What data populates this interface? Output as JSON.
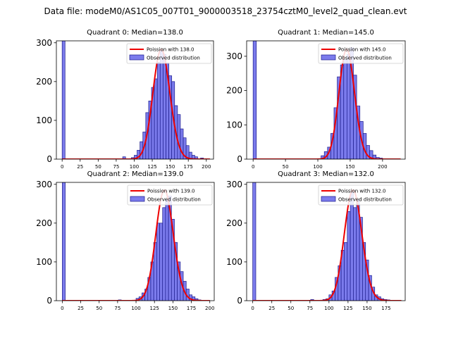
{
  "figure": {
    "suptitle": "Data file: modeM0/AS1C05_007T01_9000003518_23754cztM0_level2_quad_clean.evt"
  },
  "colors": {
    "bar_fill": "#7b7bec",
    "bar_edge": "#1c1c8c",
    "poisson_line": "#ee0000",
    "axes": "#000000"
  },
  "chart_data": [
    {
      "type": "bar",
      "title": "Quadrant 0: Median=138.0",
      "legend": [
        "Poission with 138.0",
        "Observed distribution"
      ],
      "legend_placement": "top-right",
      "median": 138,
      "xlim": [
        -8,
        210
      ],
      "ylim": [
        0,
        305
      ],
      "xticks": [
        0,
        25,
        50,
        75,
        100,
        125,
        150,
        175,
        200
      ],
      "yticks": [
        0,
        100,
        200,
        300
      ],
      "bin_width": 4,
      "bins": [
        {
          "x": 0,
          "count": 305
        },
        {
          "x": 84,
          "count": 6
        },
        {
          "x": 96,
          "count": 4
        },
        {
          "x": 100,
          "count": 10
        },
        {
          "x": 104,
          "count": 23
        },
        {
          "x": 108,
          "count": 45
        },
        {
          "x": 112,
          "count": 70
        },
        {
          "x": 116,
          "count": 120
        },
        {
          "x": 120,
          "count": 150
        },
        {
          "x": 124,
          "count": 185
        },
        {
          "x": 128,
          "count": 207
        },
        {
          "x": 132,
          "count": 250
        },
        {
          "x": 136,
          "count": 283
        },
        {
          "x": 140,
          "count": 270
        },
        {
          "x": 144,
          "count": 248
        },
        {
          "x": 148,
          "count": 215
        },
        {
          "x": 152,
          "count": 200
        },
        {
          "x": 156,
          "count": 138
        },
        {
          "x": 160,
          "count": 115
        },
        {
          "x": 164,
          "count": 78
        },
        {
          "x": 168,
          "count": 55
        },
        {
          "x": 172,
          "count": 35
        },
        {
          "x": 176,
          "count": 18
        },
        {
          "x": 180,
          "count": 10
        },
        {
          "x": 184,
          "count": 6
        },
        {
          "x": 192,
          "count": 3
        }
      ],
      "poisson_peak": 283,
      "poisson_x_range": [
        0,
        205
      ]
    },
    {
      "type": "bar",
      "title": "Quadrant 1: Median=145.0",
      "legend": [
        "Poission with 145.0",
        "Observed distribution"
      ],
      "legend_placement": "top-right",
      "median": 145,
      "xlim": [
        -10,
        235
      ],
      "ylim": [
        0,
        345
      ],
      "xticks": [
        0,
        50,
        100,
        150,
        200
      ],
      "yticks": [
        0,
        100,
        200,
        300
      ],
      "bin_width": 5,
      "bins": [
        {
          "x": 0,
          "count": 345
        },
        {
          "x": 105,
          "count": 10
        },
        {
          "x": 110,
          "count": 22
        },
        {
          "x": 115,
          "count": 35
        },
        {
          "x": 120,
          "count": 75
        },
        {
          "x": 125,
          "count": 150
        },
        {
          "x": 130,
          "count": 240
        },
        {
          "x": 135,
          "count": 275
        },
        {
          "x": 140,
          "count": 290
        },
        {
          "x": 145,
          "count": 305
        },
        {
          "x": 150,
          "count": 325
        },
        {
          "x": 155,
          "count": 245
        },
        {
          "x": 160,
          "count": 155
        },
        {
          "x": 165,
          "count": 110
        },
        {
          "x": 170,
          "count": 75
        },
        {
          "x": 175,
          "count": 40
        },
        {
          "x": 180,
          "count": 25
        },
        {
          "x": 185,
          "count": 12
        },
        {
          "x": 190,
          "count": 5
        },
        {
          "x": 195,
          "count": 3
        }
      ],
      "poisson_peak": 320,
      "poisson_x_range": [
        0,
        228
      ]
    },
    {
      "type": "bar",
      "title": "Quadrant 2: Median=139.0",
      "legend": [
        "Poission with 139.0",
        "Observed distribution"
      ],
      "legend_placement": "top-right",
      "median": 139,
      "xlim": [
        -8,
        206
      ],
      "ylim": [
        0,
        305
      ],
      "xticks": [
        0,
        25,
        50,
        75,
        100,
        125,
        150,
        175,
        200
      ],
      "yticks": [
        0,
        100,
        200,
        300
      ],
      "bin_width": 4,
      "bins": [
        {
          "x": 0,
          "count": 305
        },
        {
          "x": 76,
          "count": 2
        },
        {
          "x": 100,
          "count": 6
        },
        {
          "x": 104,
          "count": 10
        },
        {
          "x": 108,
          "count": 20
        },
        {
          "x": 112,
          "count": 30
        },
        {
          "x": 116,
          "count": 60
        },
        {
          "x": 120,
          "count": 100
        },
        {
          "x": 124,
          "count": 150
        },
        {
          "x": 128,
          "count": 200
        },
        {
          "x": 132,
          "count": 200
        },
        {
          "x": 136,
          "count": 240
        },
        {
          "x": 140,
          "count": 260
        },
        {
          "x": 144,
          "count": 270
        },
        {
          "x": 148,
          "count": 210
        },
        {
          "x": 152,
          "count": 150
        },
        {
          "x": 156,
          "count": 100
        },
        {
          "x": 160,
          "count": 75
        },
        {
          "x": 164,
          "count": 50
        },
        {
          "x": 168,
          "count": 30
        },
        {
          "x": 172,
          "count": 15
        },
        {
          "x": 176,
          "count": 10
        },
        {
          "x": 180,
          "count": 5
        },
        {
          "x": 184,
          "count": 2
        }
      ],
      "poisson_peak": 285,
      "poisson_x_range": [
        0,
        200
      ]
    },
    {
      "type": "bar",
      "title": "Quadrant 3: Median=132.0",
      "legend": [
        "Poission with 132.0",
        "Observed distribution"
      ],
      "legend_placement": "top-right",
      "median": 132,
      "xlim": [
        -8,
        200
      ],
      "ylim": [
        0,
        305
      ],
      "xticks": [
        0,
        25,
        50,
        75,
        100,
        125,
        150,
        175
      ],
      "yticks": [
        0,
        100,
        200,
        300
      ],
      "bin_width": 4,
      "bins": [
        {
          "x": 0,
          "count": 305
        },
        {
          "x": 76,
          "count": 3
        },
        {
          "x": 92,
          "count": 3
        },
        {
          "x": 96,
          "count": 5
        },
        {
          "x": 100,
          "count": 15
        },
        {
          "x": 104,
          "count": 25
        },
        {
          "x": 108,
          "count": 60
        },
        {
          "x": 112,
          "count": 90
        },
        {
          "x": 116,
          "count": 130
        },
        {
          "x": 120,
          "count": 150
        },
        {
          "x": 124,
          "count": 230
        },
        {
          "x": 128,
          "count": 280
        },
        {
          "x": 132,
          "count": 240
        },
        {
          "x": 136,
          "count": 260
        },
        {
          "x": 140,
          "count": 215
        },
        {
          "x": 144,
          "count": 150
        },
        {
          "x": 148,
          "count": 105
        },
        {
          "x": 152,
          "count": 65
        },
        {
          "x": 156,
          "count": 35
        },
        {
          "x": 160,
          "count": 15
        },
        {
          "x": 164,
          "count": 10
        },
        {
          "x": 168,
          "count": 5
        },
        {
          "x": 172,
          "count": 3
        },
        {
          "x": 176,
          "count": 2
        }
      ],
      "poisson_peak": 285,
      "poisson_x_range": [
        0,
        195
      ]
    }
  ]
}
